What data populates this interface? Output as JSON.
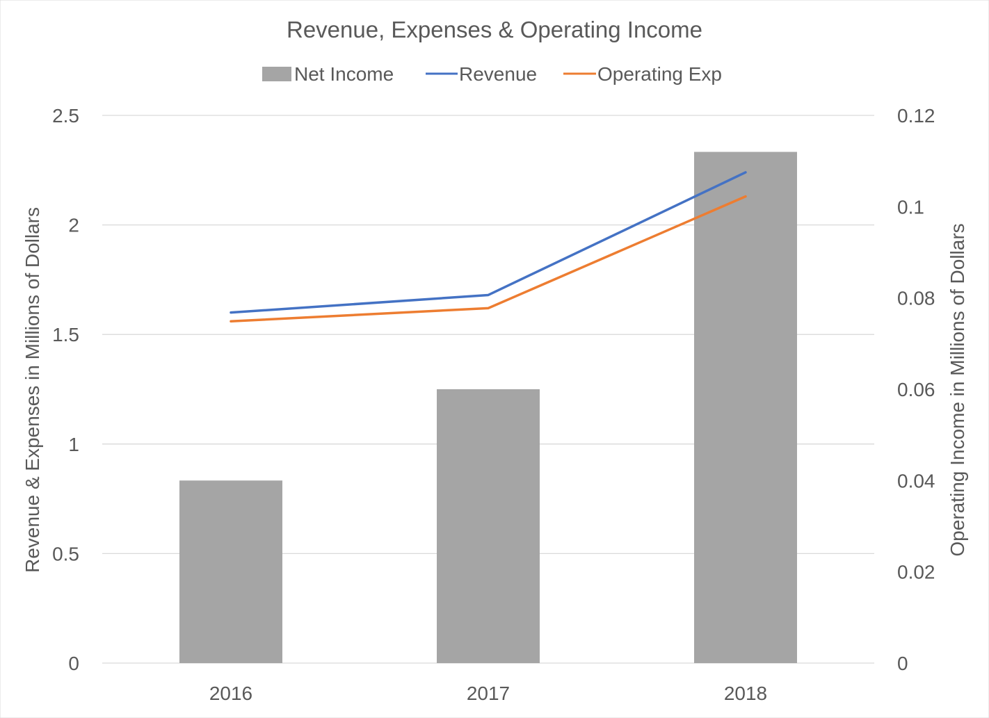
{
  "chart_data": {
    "type": "bar",
    "title": "Revenue, Expenses & Operating Income",
    "categories": [
      "2016",
      "2017",
      "2018"
    ],
    "series": [
      {
        "name": "Net Income",
        "type": "bar",
        "axis": "right",
        "values": [
          0.04,
          0.06,
          0.112
        ],
        "color": "#a5a5a5"
      },
      {
        "name": "Revenue",
        "type": "line",
        "axis": "left",
        "values": [
          1.6,
          1.68,
          2.24
        ],
        "color": "#4472c4"
      },
      {
        "name": "Operating Exp",
        "type": "line",
        "axis": "left",
        "values": [
          1.56,
          1.62,
          2.13
        ],
        "color": "#ed7d31"
      }
    ],
    "ylabel_left": "Revenue & Expenses in Millions of Dollars",
    "ylabel_right": "Operating Income in Millions of Dollars",
    "ylim_left": [
      0,
      2.5
    ],
    "ylim_right": [
      0,
      0.12
    ],
    "yticks_left": [
      "0",
      "0.5",
      "1",
      "1.5",
      "2",
      "2.5"
    ],
    "yticks_left_values": [
      0,
      0.5,
      1,
      1.5,
      2,
      2.5
    ],
    "yticks_right": [
      "0",
      "0.02",
      "0.04",
      "0.06",
      "0.08",
      "0.1",
      "0.12"
    ],
    "yticks_right_values": [
      0,
      0.02,
      0.04,
      0.06,
      0.08,
      0.1,
      0.12
    ],
    "grid": true,
    "legend_position": "top-center"
  }
}
